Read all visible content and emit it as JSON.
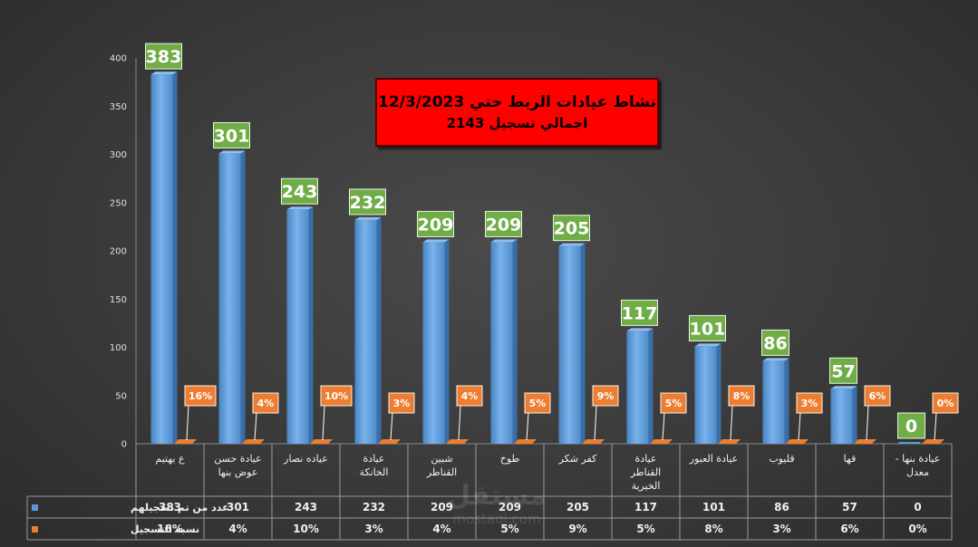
{
  "title": {
    "line1": "نشاط عيادات الربط حتي 12/3/2023",
    "line2": "اجمالي تسجيل 2143"
  },
  "watermark": {
    "arabic": "مستقل",
    "latin": "mostaql.com"
  },
  "chart_data": {
    "type": "bar",
    "title": "نشاط عيادات الربط حتي 12/3/2023 / اجمالي تسجيل 2143",
    "categories": [
      [
        "ع بهتيم"
      ],
      [
        "عيادة حسن",
        "عوض بنها"
      ],
      [
        "عياده نصار"
      ],
      [
        "عيادة",
        "الخانكة"
      ],
      [
        "شبين",
        "القناطر"
      ],
      [
        "طوخ"
      ],
      [
        "كفر شكر"
      ],
      [
        "عيادة",
        "القناطر",
        "الخيرية"
      ],
      [
        "عيادة العبور"
      ],
      [
        "قليوب"
      ],
      [
        "قها"
      ],
      [
        "عيادة بنها -",
        "معدل"
      ]
    ],
    "series": [
      {
        "name": "عدد من تم تسجيلهم",
        "color": "#5b9bd5",
        "values": [
          383,
          301,
          243,
          232,
          209,
          209,
          205,
          117,
          101,
          86,
          57,
          0
        ],
        "labels": [
          "383",
          "301",
          "243",
          "232",
          "209",
          "209",
          "205",
          "117",
          "101",
          "86",
          "57",
          "0"
        ]
      },
      {
        "name": "نسبة التسجيل",
        "color": "#ed7d31",
        "values": [
          16,
          4,
          10,
          3,
          4,
          5,
          9,
          5,
          8,
          3,
          6,
          0
        ],
        "labels": [
          "16%",
          "4%",
          "10%",
          "3%",
          "4%",
          "5%",
          "9%",
          "5%",
          "8%",
          "3%",
          "6%",
          "0%"
        ]
      }
    ],
    "yticks": [
      "0",
      "50",
      "100",
      "150",
      "200",
      "250",
      "300",
      "350",
      "400"
    ],
    "ylim": [
      0,
      400
    ],
    "xlabel": "",
    "ylabel": "",
    "grid": false,
    "legend": "data-table",
    "value_label_color": "#70ad47",
    "pct_label_color": "#ed7d31"
  }
}
